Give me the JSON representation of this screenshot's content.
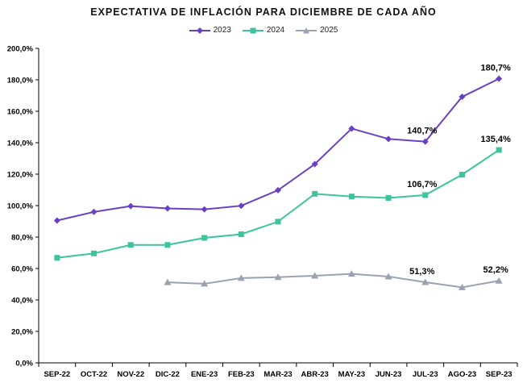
{
  "chart_data": {
    "type": "line",
    "title": "EXPECTATIVA DE INFLACIÓN PARA DICIEMBRE DE CADA AÑO",
    "categories": [
      "SEP-22",
      "OCT-22",
      "NOV-22",
      "DIC-22",
      "ENE-23",
      "FEB-23",
      "MAR-23",
      "ABR-23",
      "MAY-23",
      "JUN-23",
      "JUL-23",
      "AGO-23",
      "SEP-23"
    ],
    "ylim": [
      0,
      200
    ],
    "yticks": [
      0,
      20,
      40,
      60,
      80,
      100,
      120,
      140,
      160,
      180,
      200
    ],
    "ytick_labels": [
      "0,0%",
      "20,0%",
      "40,0%",
      "60,0%",
      "80,0%",
      "100,0%",
      "120,0%",
      "140,0%",
      "160,0%",
      "180,0%",
      "200,0%"
    ],
    "grid": false,
    "legend_position": "top-center",
    "series": [
      {
        "name": "2023",
        "color": "#6a3fc8",
        "marker": "diamond",
        "values": [
          90.5,
          96.0,
          99.7,
          98.2,
          97.6,
          99.9,
          109.8,
          126.4,
          149.0,
          142.4,
          140.7,
          169.2,
          180.7
        ]
      },
      {
        "name": "2024",
        "color": "#3cc49a",
        "marker": "square",
        "values": [
          66.8,
          69.6,
          75.0,
          75.0,
          79.5,
          81.8,
          89.8,
          107.5,
          105.8,
          104.9,
          106.7,
          119.7,
          135.4
        ]
      },
      {
        "name": "2025",
        "color": "#9aa3b1",
        "marker": "triangle",
        "values": [
          null,
          null,
          null,
          51.2,
          50.3,
          53.9,
          54.5,
          55.4,
          56.6,
          54.9,
          51.3,
          48.0,
          52.2
        ]
      }
    ],
    "annotations": [
      {
        "series": 0,
        "index": 10,
        "text": "140,7%"
      },
      {
        "series": 0,
        "index": 12,
        "text": "180,7%"
      },
      {
        "series": 1,
        "index": 10,
        "text": "106,7%"
      },
      {
        "series": 1,
        "index": 12,
        "text": "135,4%"
      },
      {
        "series": 2,
        "index": 10,
        "text": "51,3%"
      },
      {
        "series": 2,
        "index": 12,
        "text": "52,2%"
      }
    ]
  }
}
